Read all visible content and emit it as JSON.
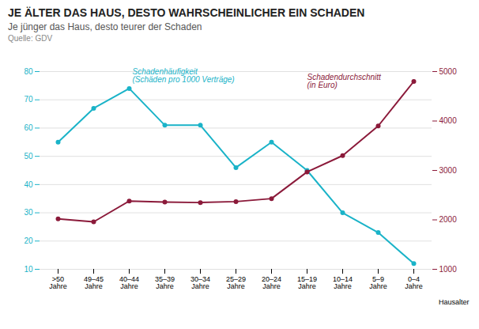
{
  "chart_data": {
    "type": "line",
    "title": "JE ÄLTER DAS HAUS, DESTO WAHRSCHEINLICHER EIN SCHADEN",
    "subtitle": "Je jünger das Haus, desto teurer der Schaden",
    "source": "Quelle: GDV",
    "xlabel": "Hausalter",
    "categories": [
      ">50\nJahre",
      "49–45\nJahre",
      "40–44\nJahre",
      "35–39\nJahre",
      "30–34\nJahre",
      "25–29\nJahre",
      "20–24\nJahre",
      "15–19\nJahre",
      "10–14\nJahre",
      "5–9\nJahre",
      "0–4\nJahre"
    ],
    "series": [
      {
        "name": "Schadenhäufigkeit\n(Schäden pro 1000 Verträge)",
        "color": "#1ab3c8",
        "marker": "circle",
        "values": [
          55,
          67,
          74,
          61,
          61,
          46,
          55,
          45,
          30,
          23,
          12
        ]
      },
      {
        "name": "Schadendurchschnitt\n(in Euro)",
        "color": "#8b1a3a",
        "marker": "circle",
        "axis": "y2",
        "values": [
          2020,
          1960,
          2380,
          2360,
          2350,
          2370,
          2430,
          2970,
          3300,
          3900,
          4800
        ]
      }
    ],
    "ylim": [
      10,
      80
    ],
    "yticks": [
      10,
      20,
      30,
      40,
      50,
      60,
      70,
      80
    ],
    "y2lim": [
      1000,
      5000
    ],
    "y2ticks": [
      1000,
      2000,
      3000,
      4000,
      5000
    ],
    "grid": true
  }
}
